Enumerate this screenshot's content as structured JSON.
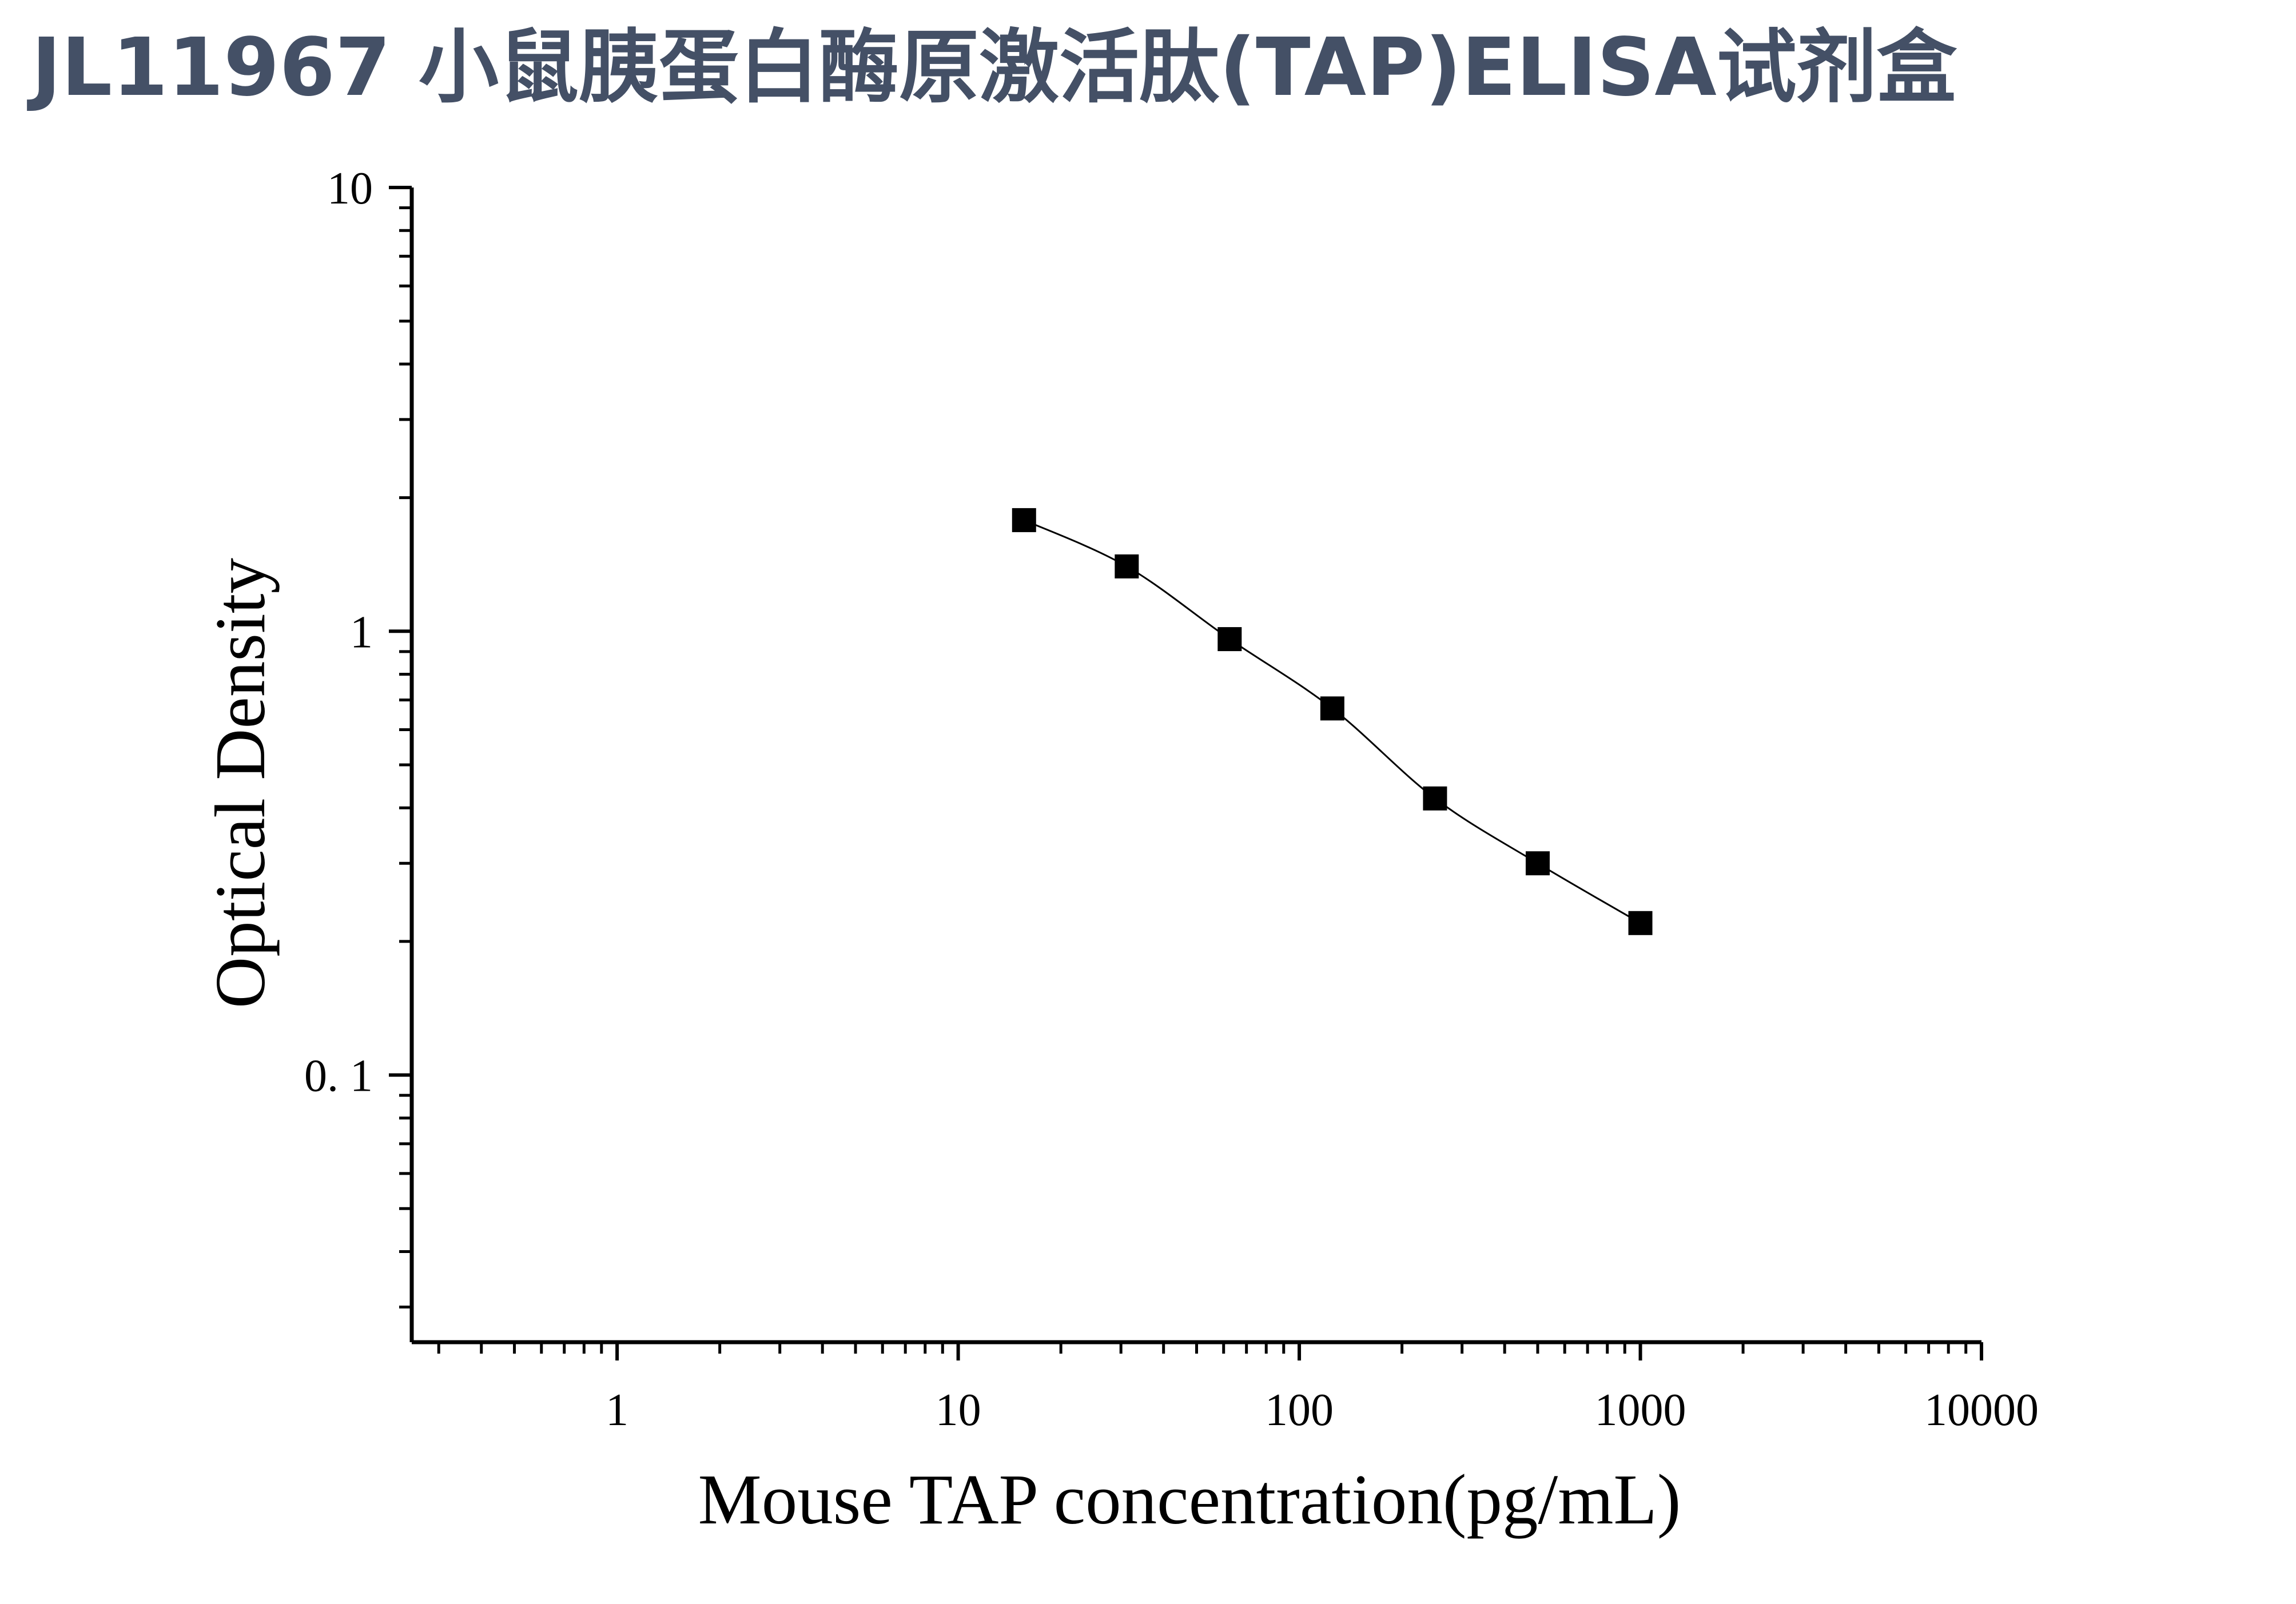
{
  "title": "JL11967 小鼠胰蛋白酶原激活肽(TAP)ELISA试剂盒",
  "colors": {
    "title": "#445066",
    "axis": "#000000",
    "marker": "#000000",
    "curve": "#000000"
  },
  "chart_data": {
    "type": "scatter",
    "title": "JL11967 小鼠胰蛋白酶原激活肽(TAP)ELISA试剂盒",
    "xlabel": "Mouse TAP concentration(pg/mL)",
    "ylabel": "Optical Density",
    "xscale": "log",
    "yscale": "log",
    "xlim": [
      0.25,
      10000
    ],
    "ylim": [
      0.025,
      10
    ],
    "x_ticks": [
      {
        "value": 1,
        "label": "1"
      },
      {
        "value": 10,
        "label": "10"
      },
      {
        "value": 100,
        "label": "100"
      },
      {
        "value": 1000,
        "label": "1000"
      },
      {
        "value": 10000,
        "label": "10000"
      }
    ],
    "y_ticks": [
      {
        "value": 0.1,
        "label": "0. 1"
      },
      {
        "value": 1,
        "label": "1"
      },
      {
        "value": 10,
        "label": "10"
      }
    ],
    "grid": false,
    "legend": "none",
    "marker": "square",
    "fit_curve": true,
    "series": [
      {
        "x": [
          15.6,
          31.2,
          62.5,
          125,
          250,
          500,
          1000
        ],
        "y": [
          1.78,
          1.4,
          0.96,
          0.67,
          0.42,
          0.3,
          0.22
        ]
      }
    ]
  }
}
